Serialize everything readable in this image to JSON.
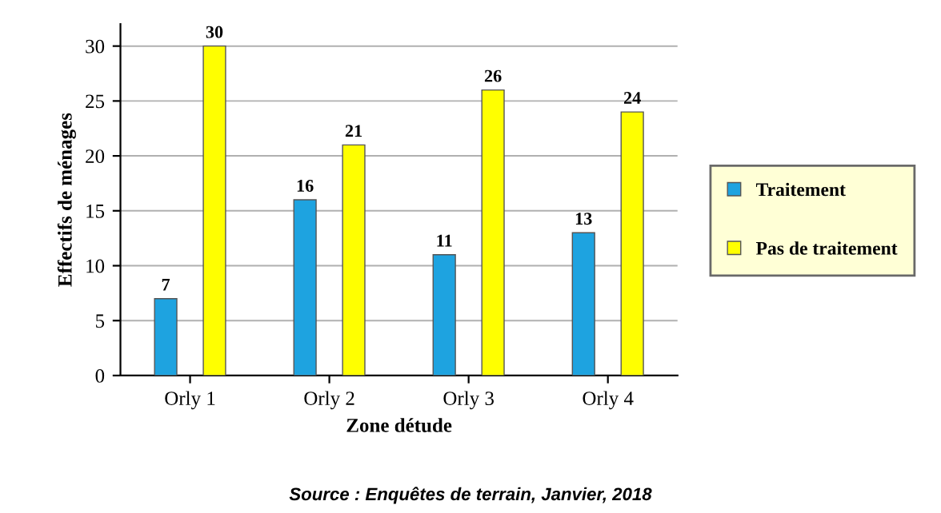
{
  "chart_data": {
    "type": "bar",
    "xlabel": "Zone détude",
    "ylabel": "Effectifs de ménages",
    "categories": [
      "Orly 1",
      "Orly 2",
      "Orly 3",
      "Orly 4"
    ],
    "series": [
      {
        "name": "Traitement",
        "color": "#1ea3e0",
        "values": [
          7,
          16,
          11,
          13
        ]
      },
      {
        "name": "Pas de traitement",
        "color": "#ffff00",
        "values": [
          30,
          21,
          26,
          24
        ]
      }
    ],
    "ylim": [
      0,
      32
    ],
    "yticks": [
      0,
      5,
      10,
      15,
      20,
      25,
      30
    ],
    "grid": "y",
    "legend": "right",
    "data_labels": true,
    "annotations": [
      "Source : Enquêtes de terrain, Janvier, 2018"
    ]
  }
}
